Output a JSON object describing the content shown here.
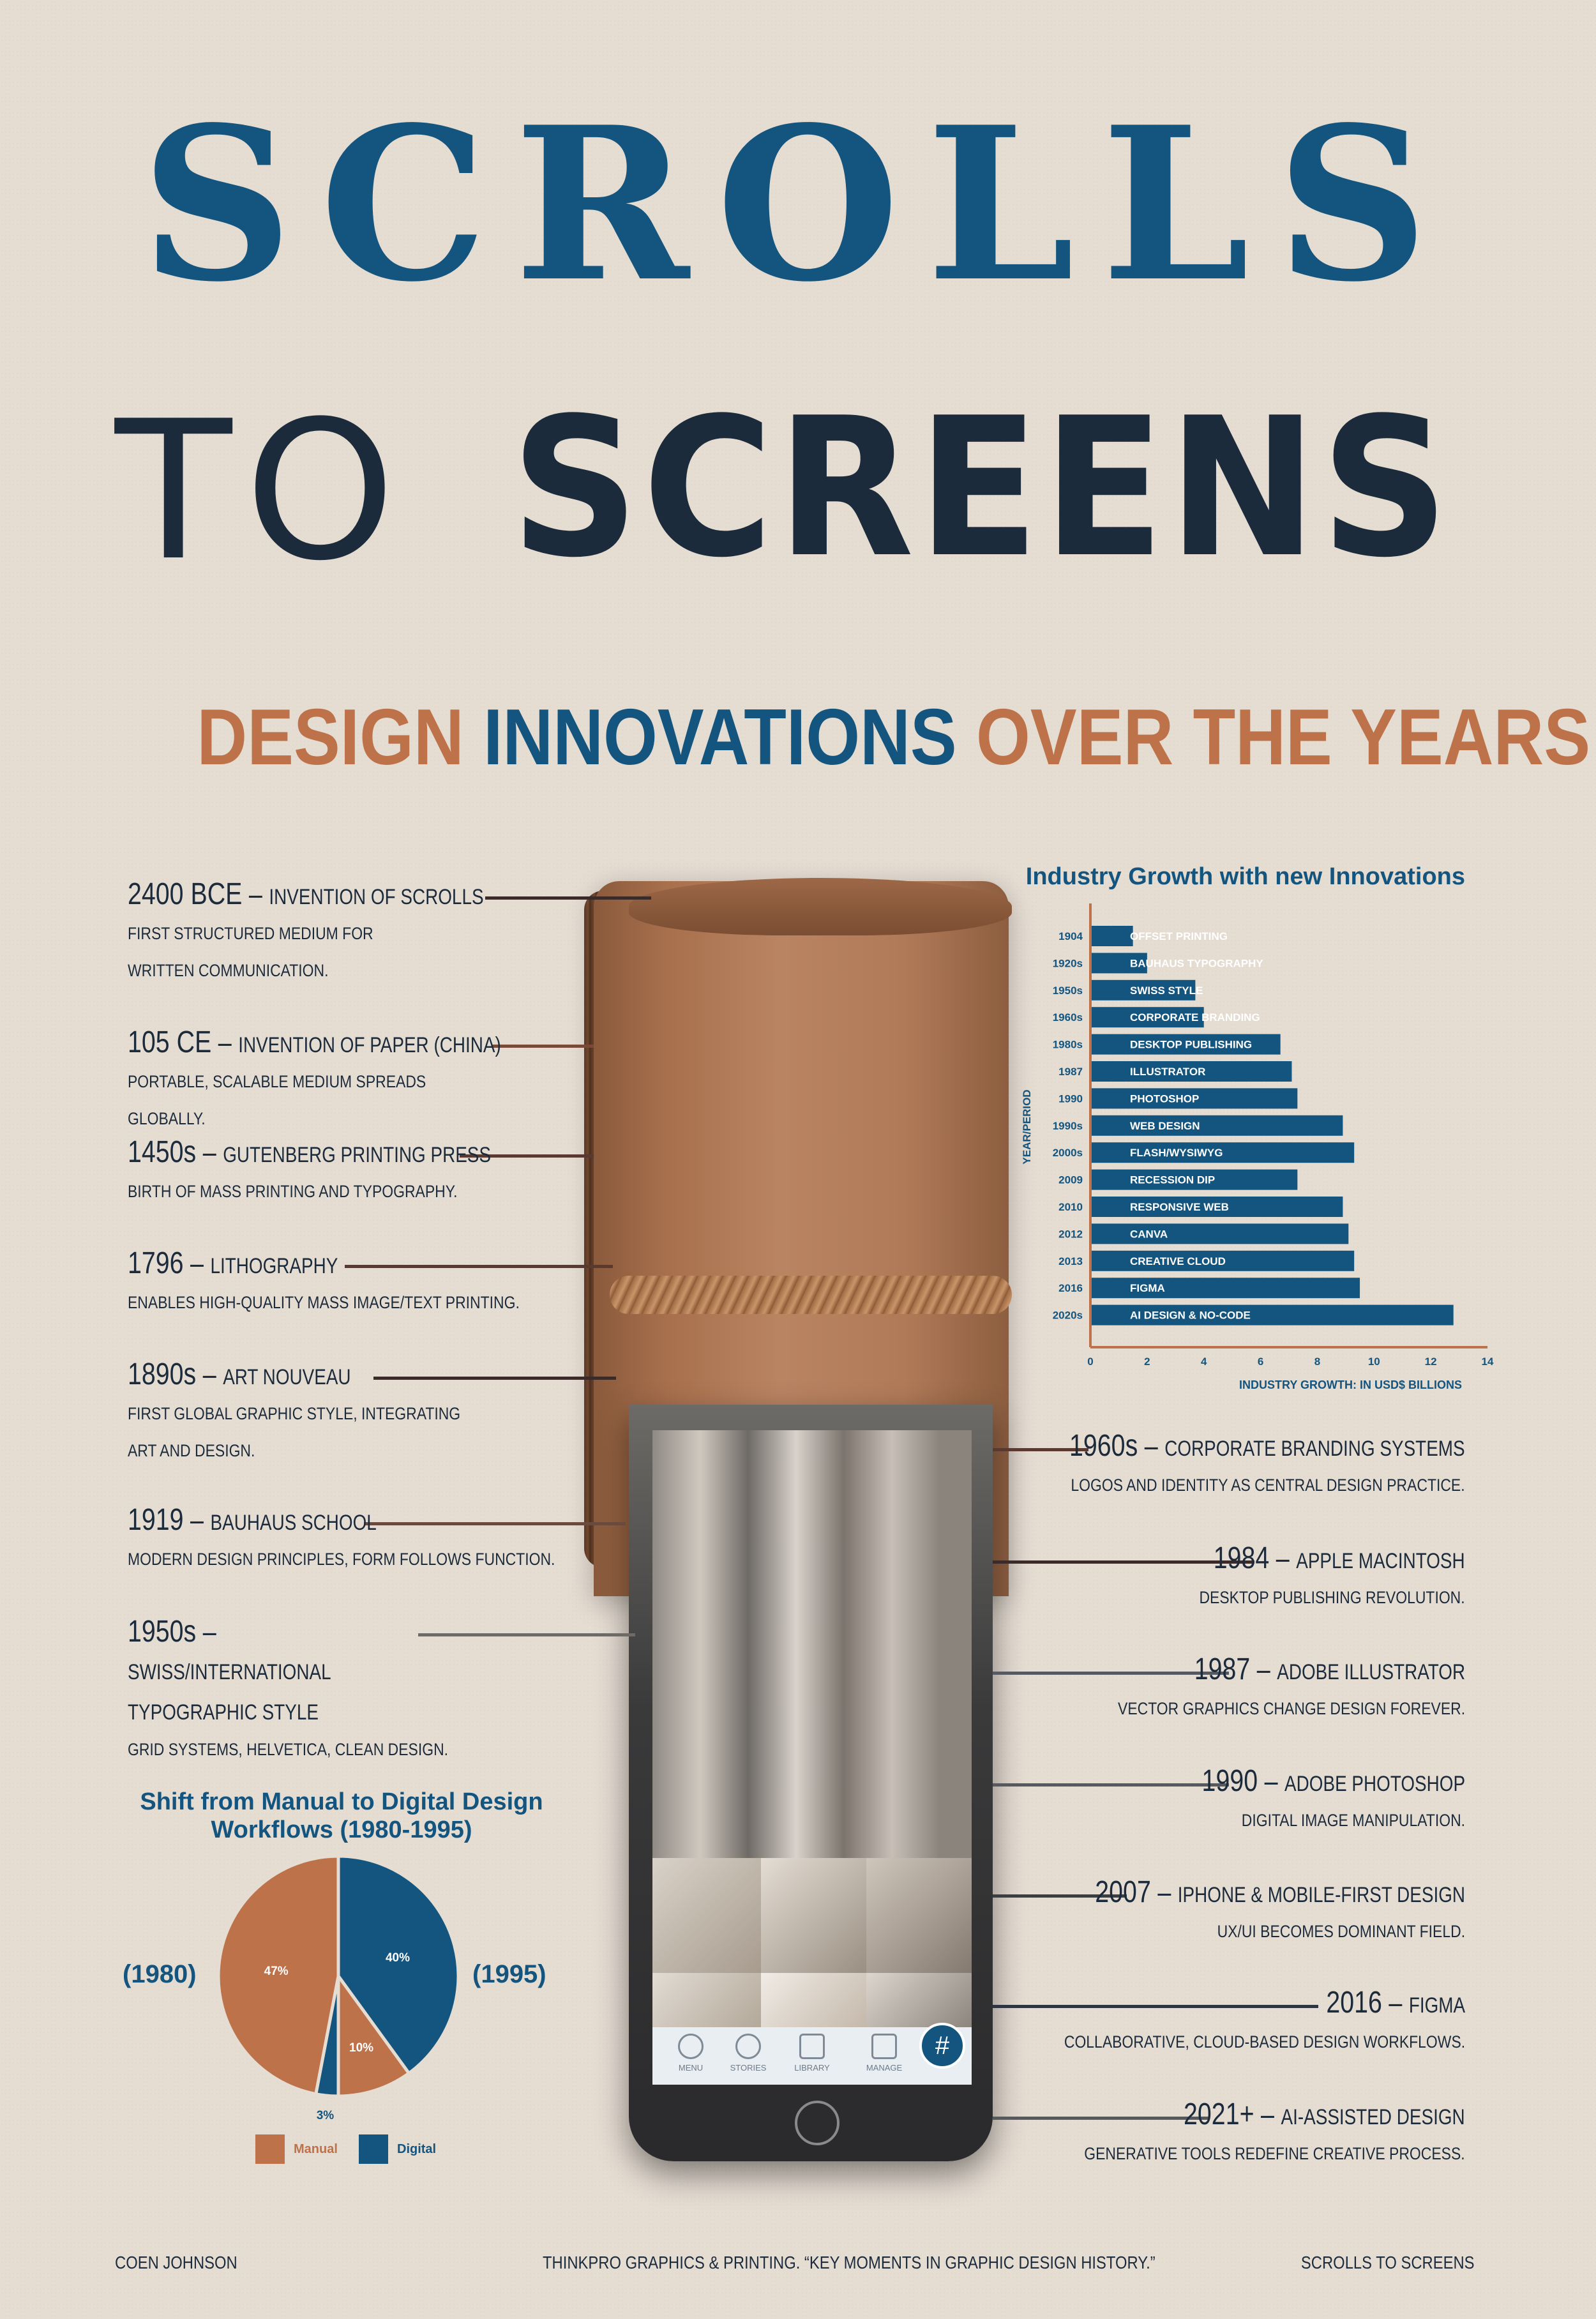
{
  "title": {
    "line1": "SCROLLS",
    "line2_thin": "TO",
    "line2_bold": "SCREENS",
    "subtitle_part1": "DESIGN",
    "subtitle_part2": "INNOVATIONS",
    "subtitle_part3": "OVER THE YEARS"
  },
  "colors": {
    "background": "#e5dcd2",
    "blue": "#13557f",
    "navy": "#1c2b3c",
    "orange": "#bd7249"
  },
  "timeline_left": [
    {
      "year": "2400 BCE",
      "name": "Invention of Scrolls",
      "desc": "First structured medium for written communication."
    },
    {
      "year": "105 CE",
      "name": "Invention of Paper (China)",
      "desc": "Portable, scalable medium spreads globally."
    },
    {
      "year": "1450s",
      "name": "Gutenberg Printing Press",
      "desc": "Birth of mass printing and typography."
    },
    {
      "year": "1796",
      "name": "Lithography",
      "desc": "Enables high-quality mass image/text printing."
    },
    {
      "year": "1890s",
      "name": "Art Nouveau",
      "desc": "First global graphic style, integrating art and design."
    },
    {
      "year": "1919",
      "name": "Bauhaus School",
      "desc": "Modern design principles, form follows function."
    },
    {
      "year": "1950s",
      "name": "Swiss/International Typographic Style",
      "desc": "Grid systems, Helvetica, clean design."
    }
  ],
  "timeline_right": [
    {
      "year": "1960s",
      "name": "Corporate Branding Systems",
      "desc": "Logos and identity as central design practice."
    },
    {
      "year": "1984",
      "name": "Apple Macintosh",
      "desc": "Desktop publishing revolution."
    },
    {
      "year": "1987",
      "name": "Adobe Illustrator",
      "desc": "Vector graphics change design forever."
    },
    {
      "year": "1990",
      "name": "Adobe Photoshop",
      "desc": "Digital image manipulation."
    },
    {
      "year": "2007",
      "name": "iPhone & Mobile-First Design",
      "desc": "UX/UI becomes dominant field."
    },
    {
      "year": "2016",
      "name": "Figma",
      "desc": "Collaborative, cloud-based design workflows."
    },
    {
      "year": "2021+",
      "name": "AI-Assisted Design",
      "desc": "Generative tools redefine creative process."
    }
  ],
  "phone": {
    "tabs": [
      "MENU",
      "STORIES",
      "LIBRARY",
      "MANAGE"
    ],
    "fab_icon": "#"
  },
  "chart_data": [
    {
      "type": "bar",
      "orientation": "horizontal",
      "title": "Industry Growth with new Innovations",
      "xlabel": "INDUSTRY GROWTH: IN USD$ BILLIONS",
      "ylabel": "YEAR/PERIOD",
      "xlim": [
        0,
        14
      ],
      "xticks": [
        0,
        2,
        4,
        6,
        8,
        10,
        12,
        14
      ],
      "categories": [
        "1904",
        "1920s",
        "1950s",
        "1960s",
        "1980s",
        "1987",
        "1990",
        "1990s",
        "2000s",
        "2009",
        "2010",
        "2012",
        "2013",
        "2016",
        "2020s"
      ],
      "labels": [
        "OFFSET PRINTING",
        "BAUHAUS TYPOGRAPHY",
        "SWISS STYLE",
        "CORPORATE BRANDING",
        "DESKTOP PUBLISHING",
        "ILLUSTRATOR",
        "PHOTOSHOP",
        "WEB DESIGN",
        "FLASH/WYSIWYG",
        "RECESSION DIP",
        "RESPONSIVE WEB",
        "CANVA",
        "CREATIVE CLOUD",
        "FIGMA",
        "AI DESIGN & NO-CODE"
      ],
      "values": [
        1.5,
        2.0,
        3.7,
        4.0,
        6.7,
        7.1,
        7.3,
        8.9,
        9.3,
        7.3,
        8.9,
        9.1,
        9.3,
        9.5,
        12.8
      ],
      "color": "#13557f",
      "grid": false
    },
    {
      "type": "pie",
      "title": "Shift from Manual to Digital Design Workflows (1980-1995)",
      "years": [
        "(1980)",
        "(1995)"
      ],
      "slices": [
        {
          "name": "Digital",
          "value": 40,
          "label": "40%",
          "color": "#13557f"
        },
        {
          "name": "Manual",
          "value": 10,
          "label": "10%",
          "color": "#bd7249"
        },
        {
          "name": "Digital",
          "value": 3,
          "label": "3%",
          "color": "#13557f"
        },
        {
          "name": "Manual",
          "value": 47,
          "label": "47%",
          "color": "#bd7249"
        }
      ],
      "legend": [
        "Manual",
        "Digital"
      ],
      "legend_placement": "bottom"
    }
  ],
  "footer": {
    "left": "COEN JOHNSON",
    "center": "THINKPRO GRAPHICS & PRINTING. “KEY MOMENTS IN GRAPHIC DESIGN HISTORY.”",
    "right": "SCROLLS TO SCREENS"
  }
}
